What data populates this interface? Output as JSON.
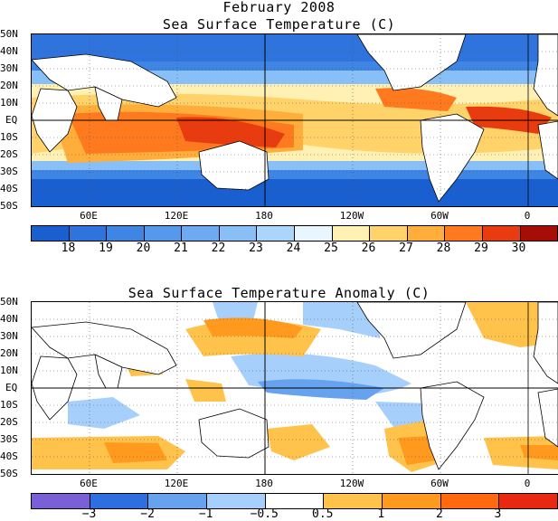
{
  "top": {
    "title1": "February 2008",
    "title2": "Sea Surface Temperature (C)",
    "colorbar_labels": [
      "18",
      "19",
      "20",
      "21",
      "22",
      "23",
      "24",
      "25",
      "26",
      "27",
      "28",
      "29",
      "30"
    ],
    "colorbar_colors": [
      "#1a5fd0",
      "#2e74dc",
      "#3e85e4",
      "#5598ec",
      "#6caaf2",
      "#88bff6",
      "#aad6fb",
      "#e8f7ff",
      "#fff0b4",
      "#ffd36a",
      "#ffae3c",
      "#ff7a1e",
      "#e83b10",
      "#a60d06"
    ]
  },
  "bottom": {
    "title": "Sea Surface Temperature Anomaly (C)",
    "colorbar_labels": [
      "−3",
      "−2",
      "−1",
      "−0.5",
      "0.5",
      "1",
      "2",
      "3"
    ],
    "colorbar_colors": [
      "#7b5fd6",
      "#2e6fe0",
      "#66a2ee",
      "#a6d0fb",
      "#ffffff",
      "#ffc24a",
      "#ff9a1e",
      "#ff6a0e",
      "#e82810"
    ]
  },
  "lat_labels": [
    "50N",
    "40N",
    "30N",
    "20N",
    "10N",
    "EQ",
    "10S",
    "20S",
    "30S",
    "40S",
    "50S"
  ],
  "lon_labels": [
    "60E",
    "120E",
    "180",
    "120W",
    "60W",
    "0"
  ]
}
